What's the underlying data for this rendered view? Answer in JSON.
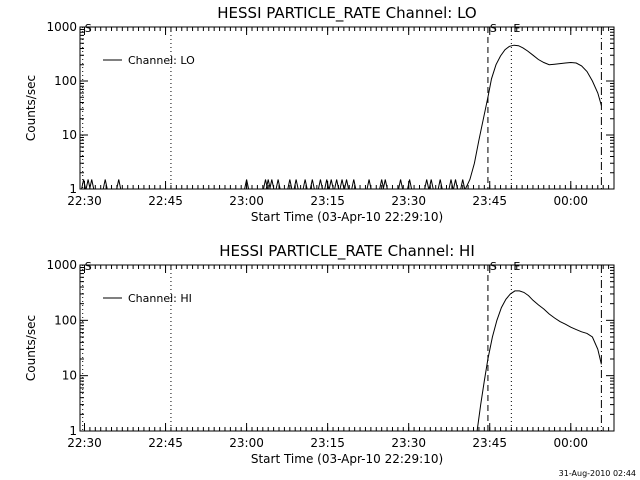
{
  "chart_data": [
    {
      "type": "line",
      "title": "HESSI PARTICLE_RATE Channel: LO",
      "xlabel": "Start Time (03-Apr-10 22:29:10)",
      "ylabel": "Counts/sec",
      "yscale": "log",
      "ylim": [
        1,
        1000
      ],
      "xlim": [
        "22:29:10",
        "00:08:00"
      ],
      "xticks": [
        "22:30",
        "22:45",
        "23:00",
        "23:15",
        "23:30",
        "23:45",
        "00:00"
      ],
      "yticks": [
        "1",
        "10",
        "100",
        "1000"
      ],
      "legend": {
        "placement": "top-left",
        "label": "Channel: LO"
      },
      "markers": [
        {
          "label": "S",
          "time": "22:29:40",
          "style": "dotted"
        },
        {
          "label": "",
          "time": "22:46:00",
          "style": "dotted"
        },
        {
          "label": "S",
          "time": "23:44:40",
          "style": "dashed"
        },
        {
          "label": "E",
          "time": "23:49:00",
          "style": "dotted"
        },
        {
          "label": "",
          "time": "00:05:40",
          "style": "dash-dot"
        }
      ],
      "spikes": [
        "22:29:50",
        "22:30:40",
        "22:31:20",
        "22:33:50",
        "22:36:20",
        "23:00:00",
        "23:03:30",
        "23:04:00",
        "23:04:40",
        "23:05:50",
        "23:08:00",
        "23:09:10",
        "23:10:50",
        "23:12:10",
        "23:13:40",
        "23:14:50",
        "23:15:40",
        "23:16:40",
        "23:17:40",
        "23:18:30",
        "23:19:50",
        "23:22:40",
        "23:25:00",
        "23:25:40",
        "23:28:30",
        "23:30:10",
        "23:33:20",
        "23:34:10",
        "23:35:50",
        "23:37:50",
        "23:38:40",
        "23:40:00"
      ],
      "series": [
        {
          "name": "Channel: LO",
          "x": [
            "23:40:30",
            "23:41:20",
            "23:42:10",
            "23:43:00",
            "23:43:50",
            "23:44:40",
            "23:45:20",
            "23:46:10",
            "23:47:00",
            "23:47:50",
            "23:48:40",
            "23:49:30",
            "23:50:20",
            "23:51:10",
            "23:52:00",
            "23:53:00",
            "23:54:00",
            "23:55:00",
            "23:56:00",
            "23:57:00",
            "23:58:00",
            "23:59:00",
            "00:00:00",
            "00:01:00",
            "00:02:00",
            "00:03:00",
            "00:04:00",
            "00:05:00",
            "00:05:40"
          ],
          "y": [
            1,
            1.5,
            3,
            8,
            20,
            50,
            110,
            200,
            290,
            380,
            440,
            460,
            450,
            410,
            360,
            300,
            250,
            220,
            200,
            205,
            210,
            215,
            220,
            215,
            190,
            150,
            100,
            60,
            35
          ]
        }
      ]
    },
    {
      "type": "line",
      "title": "HESSI PARTICLE_RATE Channel: HI",
      "xlabel": "Start Time (03-Apr-10 22:29:10)",
      "ylabel": "Counts/sec",
      "yscale": "log",
      "ylim": [
        1,
        1000
      ],
      "xlim": [
        "22:29:10",
        "00:08:00"
      ],
      "xticks": [
        "22:30",
        "22:45",
        "23:00",
        "23:15",
        "23:30",
        "23:45",
        "00:00"
      ],
      "yticks": [
        "1",
        "10",
        "100",
        "1000"
      ],
      "legend": {
        "placement": "top-left",
        "label": "Channel: HI"
      },
      "markers": [
        {
          "label": "S",
          "time": "22:29:40",
          "style": "dotted"
        },
        {
          "label": "",
          "time": "22:46:00",
          "style": "dotted"
        },
        {
          "label": "S",
          "time": "23:44:40",
          "style": "dashed"
        },
        {
          "label": "E",
          "time": "23:49:00",
          "style": "dotted"
        },
        {
          "label": "",
          "time": "00:05:40",
          "style": "dash-dot"
        }
      ],
      "spikes": [],
      "series": [
        {
          "name": "Channel: HI",
          "x": [
            "23:42:40",
            "23:43:20",
            "23:44:00",
            "23:44:40",
            "23:45:30",
            "23:46:20",
            "23:47:10",
            "23:48:00",
            "23:48:50",
            "23:49:40",
            "23:50:30",
            "23:51:20",
            "23:52:10",
            "23:53:00",
            "23:54:00",
            "23:55:00",
            "23:56:00",
            "23:57:00",
            "23:58:00",
            "23:59:00",
            "00:00:00",
            "00:01:00",
            "00:02:00",
            "00:03:00",
            "00:04:00",
            "00:05:00",
            "00:05:40"
          ],
          "y": [
            1,
            3,
            8,
            20,
            50,
            100,
            170,
            240,
            300,
            340,
            340,
            320,
            280,
            230,
            190,
            160,
            130,
            110,
            95,
            85,
            75,
            68,
            62,
            58,
            50,
            30,
            16
          ]
        }
      ]
    }
  ],
  "timestamp": "31-Aug-2010 02:44"
}
